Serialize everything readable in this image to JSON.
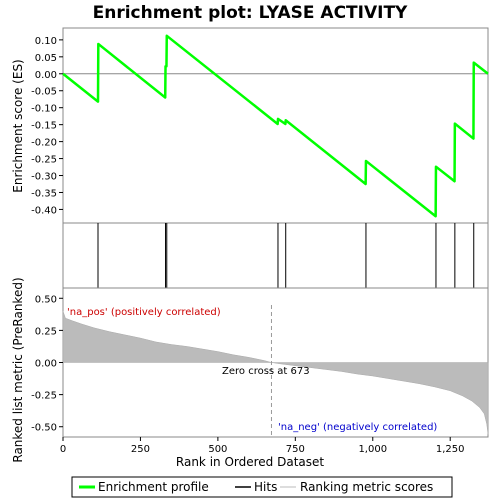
{
  "chart_data": {
    "type": "line",
    "title": "Enrichment plot: LYASE ACTIVITY",
    "xlabel": "Rank in Ordered Dataset",
    "top_panel": {
      "ylabel": "Enrichment score (ES)",
      "ylim": [
        -0.44,
        0.135
      ],
      "yticks": [
        0.1,
        0.05,
        0.0,
        -0.05,
        -0.1,
        -0.15,
        -0.2,
        -0.25,
        -0.3,
        -0.35,
        -0.4
      ],
      "ytick_labels": [
        "0.10",
        "0.05",
        "0.00",
        "-0.05",
        "-0.10",
        "-0.15",
        "-0.20",
        "-0.25",
        "-0.30",
        "-0.35",
        "-0.40"
      ],
      "series": [
        {
          "name": "Enrichment profile",
          "color": "#00ff00",
          "points": [
            [
              0,
              0.0
            ],
            [
              113,
              -0.082
            ],
            [
              114,
              0.088
            ],
            [
              330,
              -0.07
            ],
            [
              331,
              0.022
            ],
            [
              334,
              0.022
            ],
            [
              335,
              0.112
            ],
            [
              693,
              -0.148
            ],
            [
              694,
              -0.133
            ],
            [
              718,
              -0.148
            ],
            [
              719,
              -0.137
            ],
            [
              977,
              -0.325
            ],
            [
              978,
              -0.257
            ],
            [
              1203,
              -0.42
            ],
            [
              1204,
              -0.274
            ],
            [
              1264,
              -0.317
            ],
            [
              1265,
              -0.147
            ],
            [
              1325,
              -0.191
            ],
            [
              1326,
              0.033
            ],
            [
              1372,
              0.0
            ]
          ]
        }
      ]
    },
    "hits": [
      113,
      331,
      335,
      694,
      719,
      978,
      1204,
      1265,
      1326
    ],
    "color_bar": [
      {
        "from": 0,
        "to": 115,
        "color": "#e8202a"
      },
      {
        "from": 115,
        "to": 295,
        "color": "#fc5a5e"
      },
      {
        "from": 295,
        "to": 410,
        "color": "#fa7a80"
      },
      {
        "from": 410,
        "to": 525,
        "color": "#fc9aa0"
      },
      {
        "from": 525,
        "to": 673,
        "color": "#fcc0d8"
      },
      {
        "from": 673,
        "to": 805,
        "color": "#e8e4fa"
      },
      {
        "from": 805,
        "to": 955,
        "color": "#c8c0f8"
      },
      {
        "from": 955,
        "to": 1060,
        "color": "#8c82f2"
      },
      {
        "from": 1060,
        "to": 1265,
        "color": "#6458ea"
      },
      {
        "from": 1265,
        "to": 1372,
        "color": "#3414d0"
      }
    ],
    "bottom_panel": {
      "ylabel": "Ranked list metric (PreRanked)",
      "ylim": [
        -0.58,
        0.58
      ],
      "yticks": [
        0.5,
        0.25,
        0.0,
        -0.25,
        -0.5
      ],
      "ytick_labels": [
        "0.50",
        "0.25",
        "0.00",
        "-0.25",
        "-0.50"
      ],
      "metric_points": [
        [
          0,
          0.4
        ],
        [
          8,
          0.345
        ],
        [
          30,
          0.325
        ],
        [
          60,
          0.3
        ],
        [
          100,
          0.27
        ],
        [
          150,
          0.24
        ],
        [
          200,
          0.215
        ],
        [
          250,
          0.19
        ],
        [
          300,
          0.16
        ],
        [
          350,
          0.14
        ],
        [
          400,
          0.125
        ],
        [
          450,
          0.105
        ],
        [
          500,
          0.085
        ],
        [
          550,
          0.06
        ],
        [
          600,
          0.04
        ],
        [
          650,
          0.015
        ],
        [
          673,
          0.0
        ],
        [
          700,
          -0.01
        ],
        [
          750,
          -0.025
        ],
        [
          800,
          -0.04
        ],
        [
          850,
          -0.055
        ],
        [
          900,
          -0.07
        ],
        [
          950,
          -0.09
        ],
        [
          1000,
          -0.105
        ],
        [
          1050,
          -0.125
        ],
        [
          1100,
          -0.145
        ],
        [
          1150,
          -0.165
        ],
        [
          1200,
          -0.19
        ],
        [
          1250,
          -0.22
        ],
        [
          1290,
          -0.26
        ],
        [
          1320,
          -0.3
        ],
        [
          1345,
          -0.35
        ],
        [
          1360,
          -0.4
        ],
        [
          1368,
          -0.48
        ],
        [
          1372,
          -0.56
        ]
      ],
      "zero_cross": 673,
      "annotations": {
        "pos": "'na_pos' (positively correlated)",
        "neg": "'na_neg' (negatively correlated)",
        "zero": "Zero cross at 673"
      }
    },
    "xlim": [
      0,
      1372
    ],
    "xticks": [
      0,
      250,
      500,
      750,
      1000,
      1250
    ],
    "xtick_labels": [
      "0",
      "250",
      "500",
      "750",
      "1,000",
      "1,250"
    ],
    "legend": {
      "placement": "bottom",
      "entries": [
        "Enrichment profile",
        "Hits",
        "Ranking metric scores"
      ],
      "colors": [
        "#00ff00",
        "#000000",
        "#bbbbbb"
      ]
    }
  }
}
